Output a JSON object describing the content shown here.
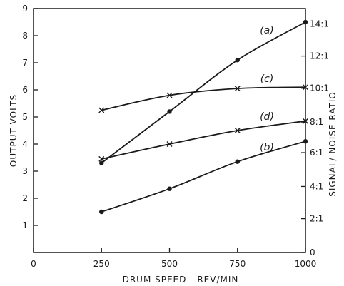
{
  "chart_data": {
    "type": "line",
    "title": "",
    "xlabel": "DRUM SPEED - REV/MIN",
    "ylabel": "OUTPUT VOLTS",
    "y2label": "SIGNAL/ NOISE RATIO",
    "xlim": [
      0,
      1000
    ],
    "ylim": [
      0,
      9
    ],
    "grid": false,
    "x_ticks": [
      {
        "value": 0,
        "label": "0"
      },
      {
        "value": 250,
        "label": "250"
      },
      {
        "value": 500,
        "label": "500"
      },
      {
        "value": 750,
        "label": "750"
      },
      {
        "value": 1000,
        "label": "1000"
      }
    ],
    "y_ticks": [
      {
        "value": 1,
        "label": "1"
      },
      {
        "value": 2,
        "label": "2"
      },
      {
        "value": 3,
        "label": "3"
      },
      {
        "value": 4,
        "label": "4"
      },
      {
        "value": 5,
        "label": "5"
      },
      {
        "value": 6,
        "label": "6"
      },
      {
        "value": 7,
        "label": "7"
      },
      {
        "value": 8,
        "label": "8"
      },
      {
        "value": 9,
        "label": "9"
      }
    ],
    "y2_ticks": [
      {
        "value": 0,
        "label": "0"
      },
      {
        "value": 2.1,
        "label": "2:1"
      },
      {
        "value": 4.1,
        "label": "4:1"
      },
      {
        "value": 6.2,
        "label": "6:1"
      },
      {
        "value": 8.1,
        "label": "8:1"
      },
      {
        "value": 10.2,
        "label": "10:1"
      },
      {
        "value": 12.2,
        "label": "12:1"
      },
      {
        "value": 14.2,
        "label": "14:1"
      }
    ],
    "series": [
      {
        "name": "(a)",
        "marker": "dot",
        "points": [
          [
            250,
            3.3
          ],
          [
            500,
            5.2
          ],
          [
            750,
            7.1
          ],
          [
            1000,
            8.5
          ]
        ]
      },
      {
        "name": "(c)",
        "marker": "cross",
        "points": [
          [
            250,
            5.25
          ],
          [
            500,
            5.8
          ],
          [
            750,
            6.05
          ],
          [
            1000,
            6.1
          ]
        ]
      },
      {
        "name": "(d)",
        "marker": "cross",
        "points": [
          [
            250,
            3.45
          ],
          [
            500,
            4.0
          ],
          [
            750,
            4.5
          ],
          [
            1000,
            4.85
          ]
        ]
      },
      {
        "name": "(b)",
        "marker": "dot",
        "points": [
          [
            250,
            1.5
          ],
          [
            500,
            2.35
          ],
          [
            750,
            3.35
          ],
          [
            1000,
            4.1
          ]
        ]
      }
    ]
  }
}
